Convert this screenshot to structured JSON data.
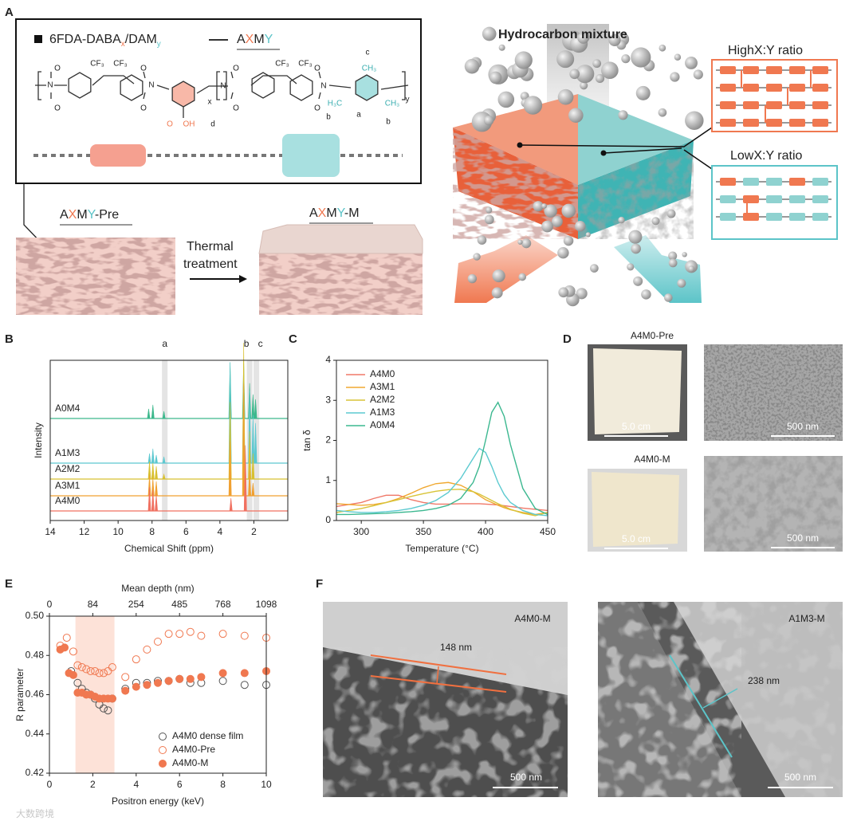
{
  "panel_labels": [
    "A",
    "B",
    "C",
    "D",
    "E",
    "F"
  ],
  "panel_a": {
    "polymer_name": [
      "6FDA-DABA",
      "x",
      "/DAM",
      "y"
    ],
    "polymer_code": [
      "A",
      "X",
      "M",
      "Y"
    ],
    "chem_labels": [
      "CF₃",
      "CF₃",
      "CF₃",
      "CF₃",
      "c",
      "CH₃",
      "H₃C",
      "CH₃",
      "a",
      "b",
      "b",
      "O",
      "OH",
      "d",
      "x",
      "y",
      "N",
      "N",
      "N",
      "N",
      "O",
      "O",
      "O",
      "O",
      "O",
      "O",
      "O",
      "O"
    ],
    "pre_label": [
      "A",
      "X",
      "M",
      "Y",
      "-Pre"
    ],
    "m_label": [
      "A",
      "X",
      "M",
      "Y",
      "-M"
    ],
    "treatment": [
      "Thermal",
      "treatment"
    ],
    "mixture": "Hydrocarbon mixture",
    "high_ratio": "HighX:Y ratio",
    "low_ratio": "LowX:Y ratio"
  },
  "chart_data": [
    {
      "type": "spectrum",
      "x_label": "Chemical Shift (ppm)",
      "y_label": "Intensity",
      "xlim": [
        14,
        0
      ],
      "xticks": [
        14,
        12,
        10,
        8,
        6,
        4,
        2
      ],
      "ylim": [
        0,
        10
      ],
      "bands": {
        "labels": [
          "a",
          "b",
          "c"
        ],
        "x": [
          7.25,
          2.25,
          1.85
        ]
      },
      "series": [
        {
          "name": "A0M4",
          "color": "#3cb88c",
          "x": [
            8.2,
            7.95,
            7.3,
            3.4,
            2.6,
            2.25,
            2.05,
            1.9
          ],
          "values": [
            0.6,
            0.85,
            0.45,
            3.5,
            3.6,
            2.2,
            1.5,
            1.2
          ]
        },
        {
          "name": "A1M3",
          "color": "#5cc8d0",
          "x": [
            8.15,
            7.95,
            7.75,
            7.3,
            3.4,
            2.6,
            2.25,
            2.05,
            1.9
          ],
          "values": [
            0.6,
            0.9,
            0.5,
            0.4,
            6.3,
            6.2,
            4.5,
            3.0,
            2.5
          ]
        },
        {
          "name": "A2M2",
          "color": "#d8c030",
          "x": [
            8.15,
            7.95,
            7.75,
            7.3,
            3.4,
            2.6,
            2.25,
            2.05
          ],
          "values": [
            1.1,
            1.0,
            0.8,
            0.3,
            4.8,
            8.5,
            3.0,
            1.6
          ]
        },
        {
          "name": "A3M1",
          "color": "#f0a030",
          "x": [
            8.15,
            7.95,
            7.75,
            3.4,
            2.6,
            2.25,
            2.05
          ],
          "values": [
            1.3,
            1.1,
            0.9,
            3.4,
            7.0,
            1.6,
            0.8
          ]
        },
        {
          "name": "A4M0",
          "color": "#f07060",
          "x": [
            8.15,
            7.95,
            7.75,
            3.35,
            2.5
          ],
          "values": [
            1.5,
            1.3,
            1.0,
            0.8,
            4.1
          ]
        }
      ]
    },
    {
      "type": "line",
      "x_label": "Temperature (°C)",
      "y_label": "tan δ",
      "xlim": [
        280,
        450
      ],
      "xticks": [
        300,
        350,
        400,
        450
      ],
      "ylim": [
        0,
        4
      ],
      "yticks": [
        0,
        1,
        2,
        3,
        4
      ],
      "legend": "upper left",
      "x": [
        280,
        290,
        300,
        310,
        320,
        330,
        340,
        350,
        360,
        370,
        380,
        390,
        395,
        400,
        405,
        410,
        415,
        420,
        430,
        440,
        450
      ],
      "series": [
        {
          "name": "A4M0",
          "color": "#f07868",
          "values": [
            0.35,
            0.4,
            0.45,
            0.55,
            0.63,
            0.63,
            0.52,
            0.45,
            0.41,
            0.41,
            0.42,
            0.42,
            0.42,
            0.41,
            0.4,
            0.39,
            0.37,
            0.35,
            0.31,
            0.28,
            0.25
          ]
        },
        {
          "name": "A3M1",
          "color": "#f0a830",
          "values": [
            0.42,
            0.4,
            0.38,
            0.4,
            0.45,
            0.55,
            0.68,
            0.82,
            0.92,
            0.95,
            0.88,
            0.72,
            0.62,
            0.52,
            0.45,
            0.38,
            0.32,
            0.27,
            0.2,
            0.15,
            0.2
          ]
        },
        {
          "name": "A2M2",
          "color": "#d8c438",
          "values": [
            0.2,
            0.25,
            0.3,
            0.37,
            0.45,
            0.52,
            0.6,
            0.67,
            0.73,
            0.77,
            0.78,
            0.72,
            0.66,
            0.58,
            0.5,
            0.42,
            0.35,
            0.28,
            0.18,
            0.12,
            0.2
          ]
        },
        {
          "name": "A1M3",
          "color": "#5ccad0",
          "values": [
            0.25,
            0.22,
            0.2,
            0.2,
            0.22,
            0.25,
            0.3,
            0.38,
            0.5,
            0.7,
            1.05,
            1.55,
            1.8,
            1.7,
            1.35,
            0.95,
            0.65,
            0.45,
            0.25,
            0.15,
            0.12
          ]
        },
        {
          "name": "A0M4",
          "color": "#3cb890",
          "values": [
            0.15,
            0.15,
            0.16,
            0.17,
            0.18,
            0.2,
            0.22,
            0.25,
            0.3,
            0.38,
            0.55,
            0.95,
            1.35,
            2.0,
            2.7,
            2.95,
            2.6,
            1.9,
            0.8,
            0.3,
            0.15
          ]
        }
      ]
    },
    {
      "type": "scatter",
      "x_label": "Positron energy (keV)",
      "y_label": "R parameter",
      "x2_label": "Mean depth (nm)",
      "xlim": [
        0,
        10
      ],
      "xticks": [
        0,
        2,
        4,
        6,
        8,
        10
      ],
      "x2ticks": [
        {
          "value": 0,
          "label": "0"
        },
        {
          "value": 2,
          "label": "84"
        },
        {
          "value": 4,
          "label": "254"
        },
        {
          "value": 6,
          "label": "485"
        },
        {
          "value": 8,
          "label": "768"
        },
        {
          "value": 10,
          "label": "1098"
        }
      ],
      "ylim": [
        0.42,
        0.5
      ],
      "yticks": [
        0.42,
        0.44,
        0.46,
        0.48,
        {
          "value": 0.5,
          "label": "0.50"
        }
      ],
      "highlight": [
        1.2,
        3.0
      ],
      "legend": "lower right",
      "series": [
        {
          "name": "A4M0 dense film",
          "color": "#555555",
          "marker": "open",
          "x": [
            1.0,
            1.3,
            1.5,
            1.7,
            1.9,
            2.1,
            2.3,
            2.5,
            2.7,
            2.9,
            3.5,
            4,
            4.5,
            5,
            5.5,
            6,
            6.5,
            7,
            8,
            9,
            10
          ],
          "values": [
            0.472,
            0.466,
            0.463,
            0.461,
            0.46,
            0.458,
            0.455,
            0.453,
            0.452,
            0.458,
            0.463,
            0.466,
            0.466,
            0.467,
            0.467,
            0.468,
            0.466,
            0.466,
            0.467,
            0.465,
            0.465
          ]
        },
        {
          "name": "A4M0-Pre",
          "color": "#f07850",
          "marker": "open",
          "x": [
            0.5,
            0.8,
            1.1,
            1.3,
            1.5,
            1.7,
            1.9,
            2.1,
            2.3,
            2.5,
            2.7,
            2.9,
            3.5,
            4,
            4.5,
            5,
            5.5,
            6,
            6.5,
            7,
            8,
            9,
            10
          ],
          "values": [
            0.485,
            0.489,
            0.482,
            0.475,
            0.474,
            0.473,
            0.472,
            0.472,
            0.471,
            0.471,
            0.472,
            0.474,
            0.469,
            0.478,
            0.483,
            0.487,
            0.491,
            0.491,
            0.492,
            0.49,
            0.491,
            0.49,
            0.489
          ]
        },
        {
          "name": "A4M0-M",
          "color": "#f07850",
          "marker": "filled",
          "x": [
            0.5,
            0.7,
            0.9,
            1.1,
            1.3,
            1.5,
            1.7,
            1.9,
            2.1,
            2.3,
            2.5,
            2.7,
            2.9,
            3.5,
            4,
            4.5,
            5,
            5.5,
            6,
            6.5,
            7,
            8,
            9,
            10
          ],
          "values": [
            0.483,
            0.484,
            0.471,
            0.47,
            0.461,
            0.461,
            0.46,
            0.46,
            0.459,
            0.458,
            0.458,
            0.458,
            0.458,
            0.462,
            0.464,
            0.465,
            0.466,
            0.467,
            0.468,
            0.468,
            0.469,
            0.471,
            0.471,
            0.472
          ]
        }
      ]
    }
  ],
  "panel_d": {
    "pre_title": "A4M0-Pre",
    "m_title": "A4M0-M",
    "photo_scale": [
      "5.0 cm",
      "5.0 cm"
    ],
    "sem_scale": [
      "500 nm",
      "500 nm"
    ]
  },
  "panel_f": {
    "left_title": "A4M0-M",
    "left_thickness": "148 nm",
    "right_title": "A1M3-M",
    "right_thickness": "238 nm",
    "scale": [
      "500 nm",
      "500 nm"
    ]
  },
  "watermark": "大数跨境"
}
